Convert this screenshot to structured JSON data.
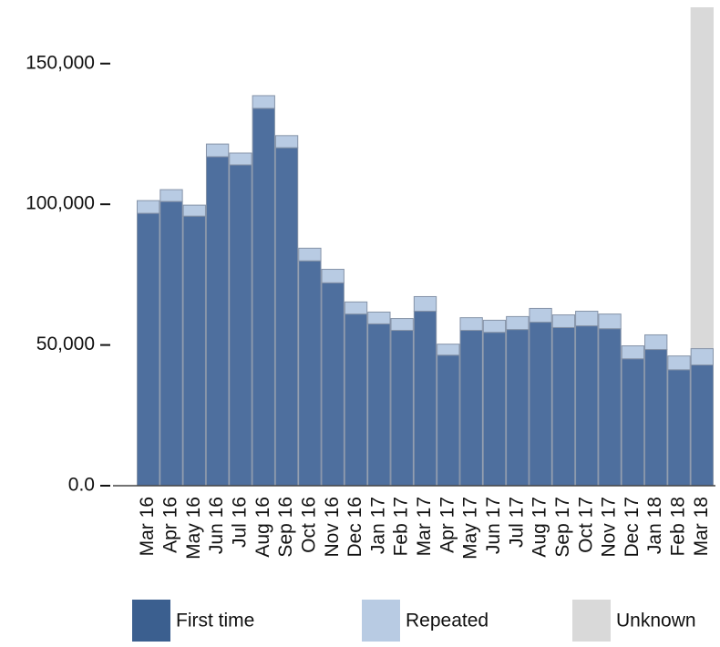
{
  "chart_data": {
    "type": "stacked-bar",
    "categories": [
      "Mar 16",
      "Apr 16",
      "May 16",
      "Jun 16",
      "Jul 16",
      "Aug 16",
      "Sep 16",
      "Oct 16",
      "Nov 16",
      "Dec 16",
      "Jan 17",
      "Feb 17",
      "Mar 17",
      "Apr 17",
      "May 17",
      "Jun 17",
      "Jul 17",
      "Aug 17",
      "Sep 17",
      "Oct 17",
      "Nov 17",
      "Dec 17",
      "Jan 18",
      "Feb 18",
      "Mar 18"
    ],
    "series": [
      {
        "name": "First time",
        "color": "#4e6f9e",
        "values": [
          96800,
          101000,
          95800,
          116900,
          114000,
          134100,
          120100,
          79900,
          72100,
          61000,
          57500,
          55200,
          62000,
          46400,
          55200,
          54500,
          55500,
          58100,
          56200,
          56800,
          55800,
          45100,
          48400,
          41200,
          42900
        ]
      },
      {
        "name": "Repeated",
        "color": "#b8cbe3",
        "values": [
          4500,
          4200,
          3900,
          4500,
          4200,
          4500,
          4300,
          4500,
          4800,
          4300,
          4200,
          4200,
          5200,
          3900,
          4500,
          4300,
          4600,
          4900,
          4500,
          5200,
          5200,
          4600,
          5200,
          4900,
          5800
        ]
      }
    ],
    "highlight": {
      "name": "Unknown",
      "color": "#d9d9d9",
      "categories": [
        "Mar 18"
      ]
    },
    "ylim": [
      0,
      170000
    ],
    "yticks": [
      {
        "value": 0,
        "label": "0.0"
      },
      {
        "value": 50000,
        "label": "50,000"
      },
      {
        "value": 100000,
        "label": "100,000"
      },
      {
        "value": 150000,
        "label": "150,000"
      }
    ]
  }
}
